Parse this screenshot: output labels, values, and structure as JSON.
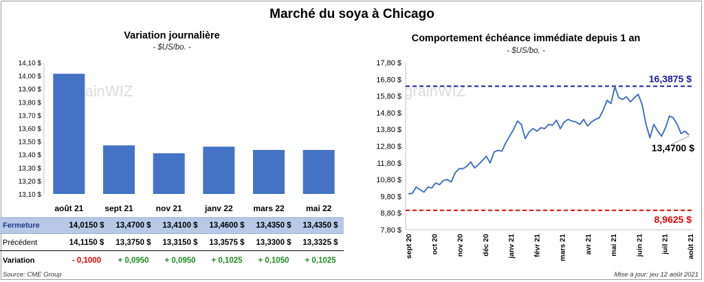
{
  "title": "Marché du soya à Chicago",
  "left_panel": {
    "title": "Variation  journalière",
    "unit": "- $US/bo. -"
  },
  "right_panel": {
    "title": "Comportement  échéance immédiate depuis 1 an",
    "unit": "- $US/bo. -"
  },
  "table": {
    "rows": [
      {
        "label": "Fermeture",
        "values": [
          "14,0150  $",
          "13,4700  $",
          "13,4100  $",
          "13,4600  $",
          "13,4350  $",
          "13,4350  $"
        ]
      },
      {
        "label": "Précédent",
        "values": [
          "14,1150  $",
          "13,3750  $",
          "13,3150  $",
          "13,3575  $",
          "13,3300  $",
          "13,3325  $"
        ]
      },
      {
        "label": "Variation",
        "values": [
          "- 0,1000",
          "+ 0,0950",
          "+ 0,0950",
          "+ 0,1025",
          "+ 0,1050",
          "+ 0,1025"
        ],
        "signs": [
          "neg",
          "pos",
          "pos",
          "pos",
          "pos",
          "pos"
        ]
      }
    ]
  },
  "source": "Source: CME Group",
  "update": "Mise à jour: jeu 12 août 2021",
  "colors": {
    "bar": "#4472c4",
    "line": "#4472c4",
    "high": "#1a1aa8",
    "low": "#e00000",
    "header_row": "#b8c9e8"
  },
  "chart_data": [
    {
      "type": "bar",
      "categories": [
        "août 21",
        "sept 21",
        "nov 21",
        "janv 22",
        "mars 22",
        "mai 22"
      ],
      "values": [
        14.015,
        13.47,
        13.41,
        13.46,
        13.435,
        13.435
      ],
      "ylim": [
        13.1,
        14.1
      ],
      "yticks": [
        "13,10 $",
        "13,20 $",
        "13,30 $",
        "13,40 $",
        "13,50 $",
        "13,60 $",
        "13,70 $",
        "13,80 $",
        "13,90 $",
        "14,00 $",
        "14,10 $"
      ],
      "grid": false
    },
    {
      "type": "line",
      "x_labels": [
        "sept 20",
        "oct 20",
        "nov 20",
        "déc 20",
        "janv 21",
        "févr 21",
        "mars 21",
        "avr 21",
        "mai 21",
        "juin 21",
        "juil 21",
        "août 21"
      ],
      "ylim": [
        7.8,
        17.8
      ],
      "yticks": [
        "7,80 $",
        "8,80 $",
        "9,80 $",
        "10,80 $",
        "11,80 $",
        "12,80 $",
        "13,80 $",
        "14,80 $",
        "15,80 $",
        "16,80 $",
        "17,80 $"
      ],
      "values": [
        9.95,
        9.98,
        10.35,
        10.2,
        10.05,
        10.35,
        10.3,
        10.6,
        10.5,
        10.75,
        10.8,
        10.65,
        11.2,
        11.45,
        11.45,
        11.6,
        11.85,
        11.5,
        11.7,
        11.95,
        12.2,
        11.8,
        12.45,
        12.55,
        12.5,
        13.0,
        13.4,
        13.8,
        14.3,
        14.1,
        13.25,
        13.65,
        13.85,
        13.7,
        13.9,
        13.85,
        14.1,
        14.05,
        14.35,
        13.85,
        14.25,
        14.4,
        14.3,
        14.25,
        14.1,
        14.4,
        14.0,
        14.25,
        14.4,
        14.5,
        14.95,
        15.55,
        15.35,
        16.35,
        15.7,
        15.6,
        15.75,
        15.45,
        15.7,
        15.9,
        15.3,
        14.1,
        13.3,
        14.1,
        13.7,
        13.4,
        13.9,
        14.6,
        14.5,
        14.1,
        13.55,
        13.7,
        13.47
      ],
      "hlines": [
        {
          "value": 16.3875,
          "label": "16,3875  $",
          "color": "high"
        },
        {
          "value": 8.9625,
          "label": "8,9625  $",
          "color": "low"
        }
      ],
      "last_label": "13,4700 $",
      "grid": false
    }
  ]
}
